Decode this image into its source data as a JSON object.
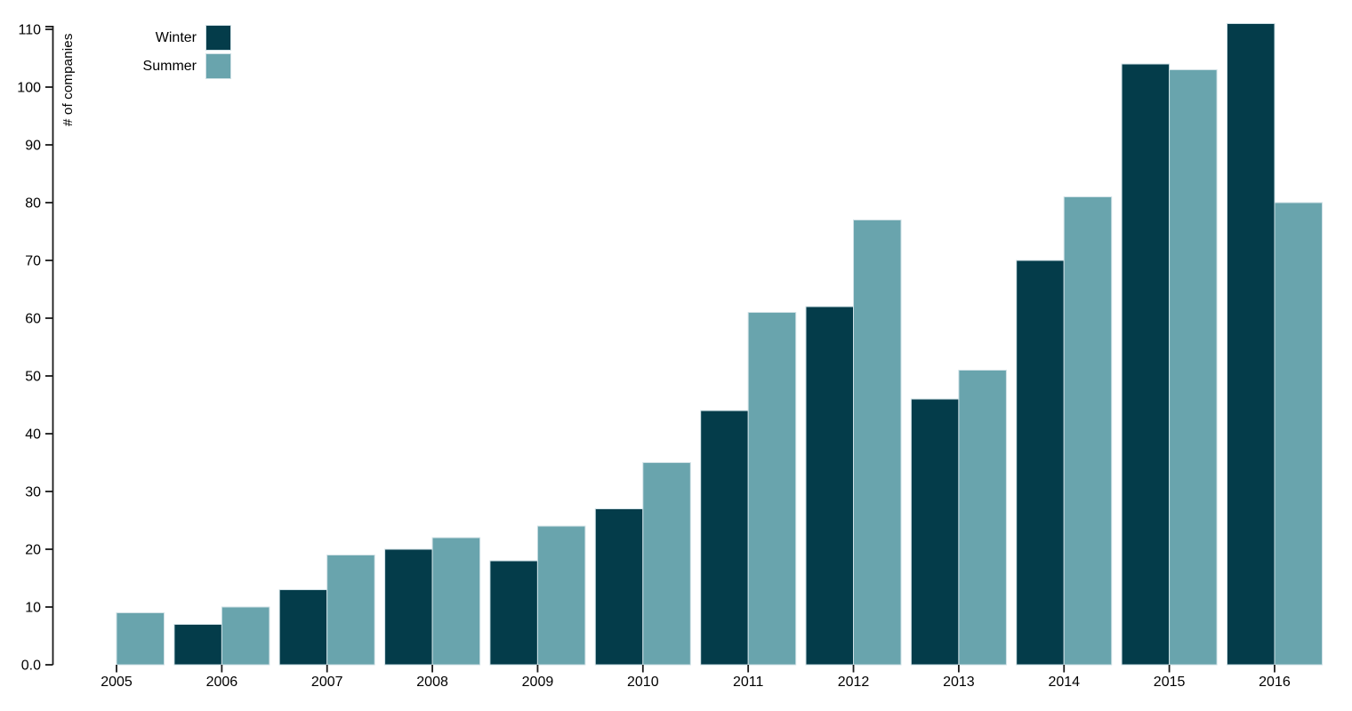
{
  "chart_data": {
    "type": "bar",
    "title": "",
    "xlabel": "",
    "ylabel": "# of companies",
    "categories": [
      "2005",
      "2006",
      "2007",
      "2008",
      "2009",
      "2010",
      "2011",
      "2012",
      "2013",
      "2014",
      "2015",
      "2016"
    ],
    "series": [
      {
        "name": "Winter",
        "color": "#043c4a",
        "values": [
          null,
          7,
          13,
          20,
          18,
          27,
          44,
          62,
          46,
          70,
          104,
          111
        ]
      },
      {
        "name": "Summer",
        "color": "#69a4ad",
        "values": [
          9,
          10,
          19,
          22,
          24,
          35,
          61,
          77,
          51,
          81,
          103,
          80
        ]
      }
    ],
    "ylim": [
      0,
      110
    ],
    "y_tick_step": 10,
    "y_tick_labels": [
      "0.0",
      "10",
      "20",
      "30",
      "40",
      "50",
      "60",
      "70",
      "80",
      "90",
      "100",
      "110"
    ],
    "grid": false,
    "legend_position": "upper-left",
    "background_color": "#ffffff",
    "bar_edge_color": "#cfe0e5",
    "axis_color": "#1a1a1a",
    "tick_label_color": "#000000",
    "tick_font_size": 16,
    "year_font_size": 16
  }
}
